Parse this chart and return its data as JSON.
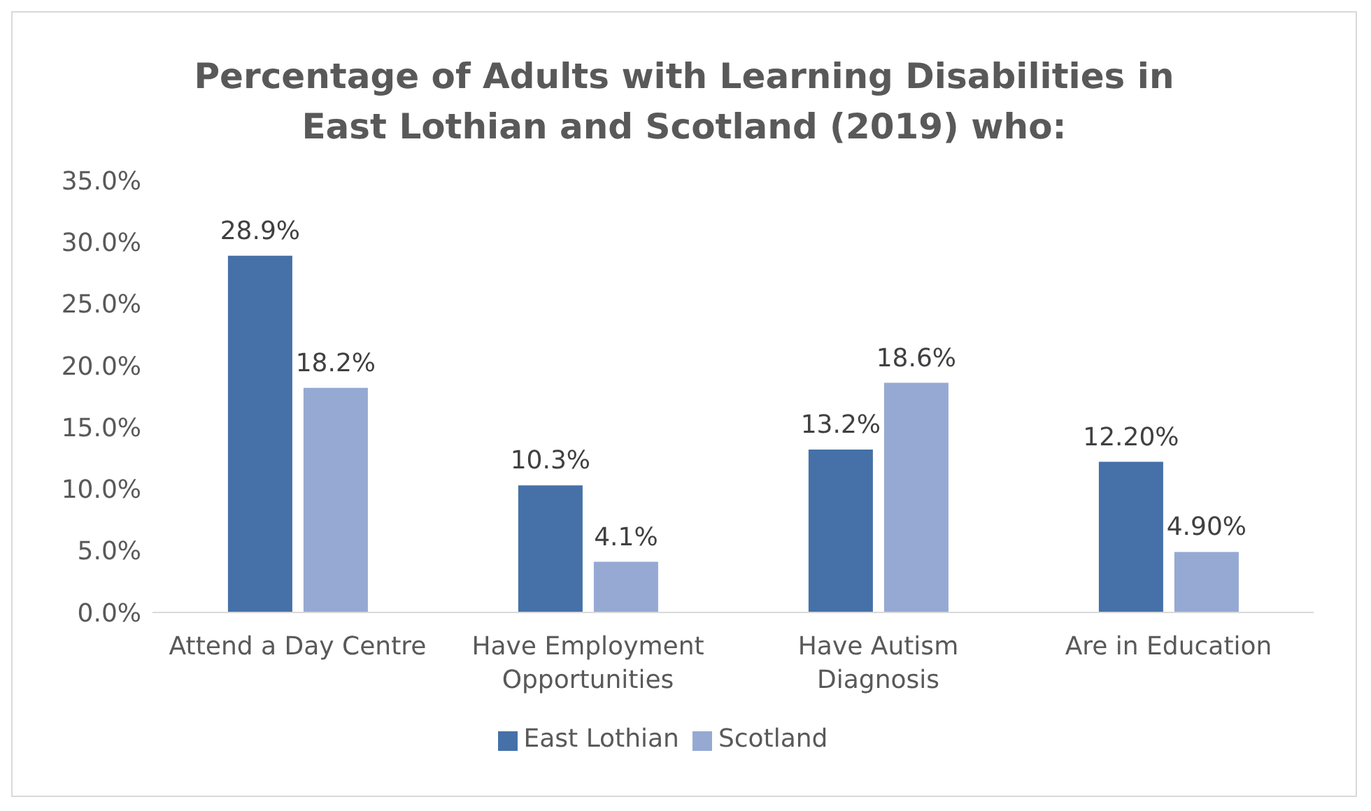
{
  "chart_data": {
    "type": "bar",
    "title": "Percentage of Adults with Learning Disabilities in East Lothian and Scotland (2019) who:",
    "categories": [
      "Attend a Day Centre",
      "Have Employment Opportunities",
      "Have Autism Diagnosis",
      "Are in Education"
    ],
    "series": [
      {
        "name": "East Lothian",
        "color": "#4571a8",
        "values": [
          28.9,
          10.3,
          13.2,
          12.2
        ],
        "value_labels": [
          "28.9%",
          "10.3%",
          "13.2%",
          "12.20%"
        ]
      },
      {
        "name": "Scotland",
        "color": "#95a9d3",
        "values": [
          18.2,
          4.1,
          18.6,
          4.9
        ],
        "value_labels": [
          "18.2%",
          "4.1%",
          "18.6%",
          "4.90%"
        ]
      }
    ],
    "ylim": [
      0,
      35
    ],
    "yticks": [
      {
        "value": 0,
        "label": "0.0%"
      },
      {
        "value": 5,
        "label": "5.0%"
      },
      {
        "value": 10,
        "label": "10.0%"
      },
      {
        "value": 15,
        "label": "15.0%"
      },
      {
        "value": 20,
        "label": "20.0%"
      },
      {
        "value": 25,
        "label": "25.0%"
      },
      {
        "value": 30,
        "label": "30.0%"
      },
      {
        "value": 35,
        "label": "35.0%"
      }
    ],
    "grid": false,
    "legend": "bottom"
  }
}
